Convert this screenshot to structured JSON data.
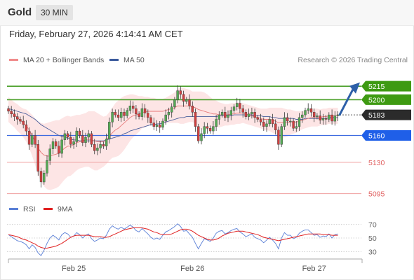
{
  "header": {
    "instrument": "Gold",
    "timeframe": "30 MIN"
  },
  "datetime": "Friday, February 27, 2026 4:14:41 AM CET",
  "legend": {
    "ma20_label": "MA 20 + Bollinger Bands",
    "ma50_label": "MA 50",
    "rsi_label": "RSI",
    "rsi_ma_label": "9MA"
  },
  "copyright": "Research © 2026 Trading Central",
  "colors": {
    "up": "#55aa55",
    "down": "#d24040",
    "ma20": "#e67878",
    "ma50": "#4a5f9c",
    "bands_fill": "#fde5e5",
    "target_line": "#4ba02a",
    "pivot_line": "#3d6ae0",
    "support_line": "#f0a0a0",
    "arrow": "#2d5fa8",
    "rsi": "#5a7fd6",
    "rsi_ma": "#e02020"
  },
  "chart_data": [
    {
      "type": "candlestick",
      "title": "Gold",
      "timeframe": "30 MIN",
      "x_tick_labels": [
        "Feb 25",
        "Feb 26",
        "Feb 27"
      ],
      "ylim": [
        5090,
        5230
      ],
      "levels": [
        {
          "value": 5215,
          "label": "5215",
          "kind": "target"
        },
        {
          "value": 5200,
          "label": "5200",
          "kind": "target"
        },
        {
          "value": 5183,
          "label": "5183",
          "kind": "last-price"
        },
        {
          "value": 5160,
          "label": "5160",
          "kind": "pivot"
        },
        {
          "value": 5130,
          "label": "5130",
          "kind": "support"
        },
        {
          "value": 5095,
          "label": "5095",
          "kind": "support"
        }
      ],
      "closes": [
        5187,
        5184,
        5181,
        5178,
        5176,
        5172,
        5165,
        5150,
        5160,
        5150,
        5120,
        5108,
        5118,
        5132,
        5145,
        5153,
        5148,
        5140,
        5155,
        5162,
        5158,
        5150,
        5153,
        5165,
        5160,
        5152,
        5158,
        5162,
        5150,
        5143,
        5146,
        5150,
        5148,
        5156,
        5175,
        5186,
        5183,
        5180,
        5186,
        5182,
        5188,
        5193,
        5190,
        5184,
        5181,
        5190,
        5185,
        5180,
        5174,
        5170,
        5172,
        5169,
        5176,
        5183,
        5186,
        5192,
        5200,
        5210,
        5206,
        5198,
        5200,
        5193,
        5186,
        5170,
        5154,
        5162,
        5170,
        5168,
        5165,
        5170,
        5178,
        5183,
        5186,
        5180,
        5183,
        5188,
        5192,
        5196,
        5190,
        5186,
        5181,
        5184,
        5186,
        5180,
        5178,
        5175,
        5170,
        5173,
        5178,
        5173,
        5166,
        5150,
        5170,
        5180,
        5176,
        5176,
        5168,
        5170,
        5180,
        5183,
        5188,
        5190,
        5186,
        5181,
        5182,
        5177,
        5179,
        5178,
        5183,
        5176,
        5182,
        5183
      ],
      "ma20": [
        5189,
        5186,
        5183,
        5180,
        5177,
        5174,
        5171,
        5166,
        5160,
        5153,
        5146,
        5141,
        5138,
        5137,
        5137,
        5138,
        5139,
        5140,
        5143,
        5146,
        5148,
        5148,
        5150,
        5152,
        5153,
        5154,
        5155,
        5156,
        5155,
        5154,
        5153,
        5153,
        5153,
        5155,
        5159,
        5163,
        5166,
        5168,
        5171,
        5174,
        5177,
        5180,
        5182,
        5183,
        5184,
        5186,
        5186,
        5187,
        5187,
        5187,
        5187,
        5187,
        5187,
        5188,
        5189,
        5190,
        5191,
        5193,
        5193,
        5193,
        5193,
        5193,
        5192,
        5191,
        5189,
        5188,
        5187,
        5186,
        5185,
        5184,
        5184,
        5183,
        5183,
        5183,
        5183,
        5184,
        5184,
        5185,
        5185,
        5185,
        5184,
        5183,
        5182,
        5181,
        5180,
        5179,
        5178,
        5178,
        5178,
        5177,
        5176,
        5174,
        5174,
        5174,
        5174,
        5175,
        5175,
        5175,
        5176,
        5177,
        5178,
        5179,
        5180,
        5180,
        5180,
        5180,
        5181,
        5181,
        5182,
        5182,
        5182,
        5182
      ],
      "ma50": [
        5190,
        5189,
        5188,
        5187,
        5186,
        5185,
        5184,
        5182,
        5180,
        5178,
        5175,
        5172,
        5170,
        5168,
        5166,
        5164,
        5162,
        5160,
        5159,
        5158,
        5157,
        5156,
        5155,
        5155,
        5154,
        5154,
        5154,
        5154,
        5154,
        5154,
        5154,
        5154,
        5154,
        5155,
        5156,
        5157,
        5158,
        5159,
        5160,
        5162,
        5163,
        5165,
        5166,
        5167,
        5168,
        5169,
        5170,
        5171,
        5172,
        5172,
        5173,
        5173,
        5174,
        5175,
        5176,
        5177,
        5178,
        5179,
        5180,
        5180,
        5181,
        5181,
        5181,
        5181,
        5181,
        5181,
        5181,
        5181,
        5181,
        5181,
        5181,
        5182,
        5182,
        5182,
        5182,
        5182,
        5183,
        5183,
        5183,
        5183,
        5183,
        5183,
        5183,
        5182,
        5182,
        5182,
        5181,
        5181,
        5181,
        5180,
        5180,
        5179,
        5179,
        5179,
        5179,
        5179,
        5179,
        5178,
        5178,
        5178,
        5179,
        5179,
        5179,
        5179,
        5179,
        5179,
        5179,
        5179,
        5180,
        5180,
        5180,
        5180
      ],
      "bb_width": [
        14,
        14,
        14,
        15,
        15,
        16,
        18,
        20,
        23,
        26,
        30,
        33,
        35,
        37,
        38,
        38,
        38,
        37,
        36,
        35,
        34,
        33,
        32,
        31,
        30,
        30,
        30,
        31,
        32,
        33,
        32,
        30,
        28,
        27,
        27,
        28,
        30,
        31,
        31,
        30,
        28,
        26,
        24,
        22,
        20,
        18,
        17,
        16,
        15,
        15,
        14,
        14,
        14,
        14,
        15,
        16,
        17,
        19,
        20,
        20,
        19,
        18,
        17,
        18,
        20,
        21,
        21,
        20,
        18,
        16,
        15,
        14,
        13,
        12,
        12,
        12,
        12,
        12,
        12,
        11,
        11,
        11,
        11,
        11,
        11,
        11,
        12,
        12,
        13,
        14,
        15,
        17,
        17,
        16,
        15,
        14,
        13,
        12,
        11,
        10,
        10,
        10,
        10,
        10,
        10,
        9,
        9,
        9,
        9,
        9,
        9,
        9
      ]
    },
    {
      "type": "line",
      "title": "RSI",
      "ylim": [
        20,
        80
      ],
      "y_ticks": [
        30,
        50,
        70
      ],
      "series": [
        {
          "name": "RSI",
          "values": [
            55,
            52,
            49,
            46,
            45,
            43,
            40,
            34,
            40,
            36,
            28,
            24,
            32,
            42,
            50,
            54,
            51,
            47,
            55,
            58,
            56,
            51,
            53,
            58,
            55,
            50,
            54,
            56,
            49,
            45,
            47,
            50,
            49,
            54,
            63,
            68,
            65,
            63,
            66,
            63,
            66,
            69,
            66,
            61,
            59,
            64,
            60,
            56,
            51,
            48,
            50,
            48,
            54,
            59,
            61,
            64,
            67,
            71,
            67,
            60,
            61,
            56,
            51,
            42,
            34,
            42,
            49,
            47,
            45,
            50,
            57,
            60,
            61,
            56,
            58,
            61,
            63,
            64,
            59,
            56,
            52,
            54,
            56,
            51,
            49,
            47,
            43,
            47,
            51,
            47,
            42,
            34,
            50,
            58,
            54,
            54,
            49,
            51,
            57,
            60,
            62,
            62,
            58,
            54,
            55,
            51,
            53,
            52,
            56,
            50,
            55,
            56
          ]
        },
        {
          "name": "9MA",
          "values": [
            55,
            54,
            53,
            52,
            50,
            48,
            47,
            45,
            43,
            41,
            38,
            36,
            35,
            35,
            36,
            37,
            38,
            40,
            42,
            45,
            48,
            51,
            53,
            54,
            54,
            54,
            54,
            54,
            53,
            52,
            52,
            52,
            51,
            51,
            52,
            54,
            56,
            58,
            60,
            62,
            63,
            64,
            65,
            65,
            65,
            65,
            64,
            63,
            61,
            59,
            58,
            56,
            55,
            55,
            55,
            56,
            58,
            60,
            62,
            63,
            63,
            62,
            60,
            57,
            54,
            52,
            50,
            48,
            47,
            47,
            48,
            50,
            53,
            55,
            57,
            58,
            59,
            60,
            60,
            60,
            59,
            58,
            57,
            56,
            55,
            53,
            51,
            50,
            49,
            48,
            47,
            46,
            47,
            48,
            49,
            50,
            51,
            52,
            53,
            54,
            55,
            56,
            56,
            56,
            56,
            56,
            55,
            55,
            55,
            54,
            54,
            54
          ]
        }
      ]
    }
  ]
}
